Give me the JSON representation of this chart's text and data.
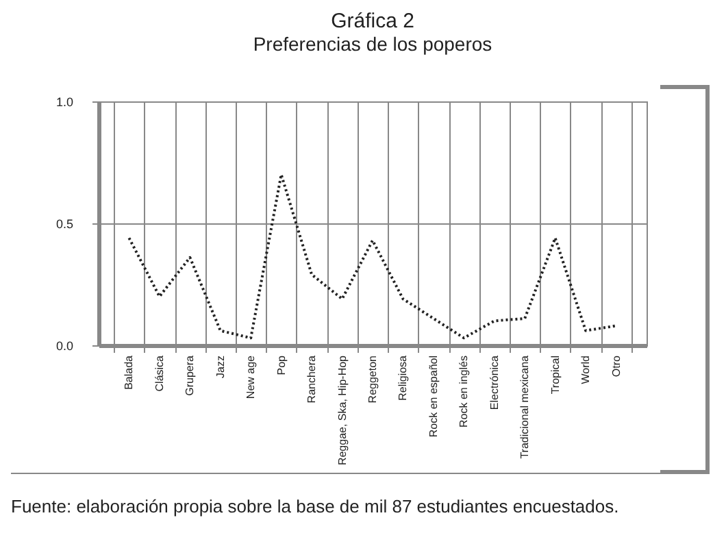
{
  "chart_data": {
    "type": "line",
    "title": "Gráfica 2",
    "subtitle": "Preferencias de los poperos",
    "categories": [
      "Balada",
      "Clásica",
      "Grupera",
      "Jazz",
      "New age",
      "Pop",
      "Ranchera",
      "Reggae, Ska, Hip-Hop",
      "Reggeton",
      "Religiosa",
      "Rock en español",
      "Rock en inglés",
      "Electrónica",
      "Tradicional mexicana",
      "Tropical",
      "World",
      "Otro"
    ],
    "series": [
      {
        "color": "#222222",
        "values": [
          0.44,
          0.2,
          0.36,
          0.06,
          0.03,
          0.7,
          0.29,
          0.19,
          0.43,
          0.19,
          0.11,
          0.03,
          0.1,
          0.11,
          0.44,
          0.06,
          0.08
        ]
      }
    ],
    "ylim": [
      0,
      1
    ],
    "yticks": [
      {
        "value": 0,
        "label": "0.0"
      },
      {
        "value": 0.5,
        "label": "0.5"
      },
      {
        "value": 1,
        "label": "1.0"
      }
    ],
    "grid": true,
    "line_style": "dotted",
    "marker": "none",
    "annotations": [
      "Fuente: elaboración propia sobre la base de mil 87 estudiantes encuestados."
    ]
  }
}
